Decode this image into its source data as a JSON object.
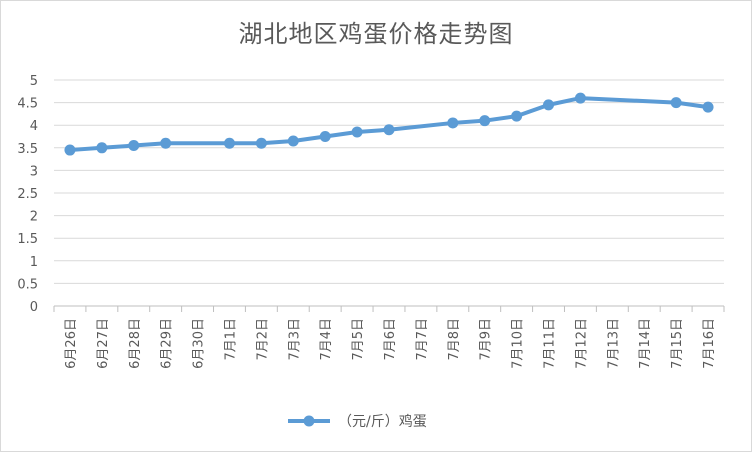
{
  "chart_data": {
    "type": "line",
    "title": "湖北地区鸡蛋价格走势图",
    "categories": [
      "6月26日",
      "6月27日",
      "6月28日",
      "6月29日",
      "6月30日",
      "7月1日",
      "7月2日",
      "7月3日",
      "7月4日",
      "7月5日",
      "7月6日",
      "7月7日",
      "7月8日",
      "7月9日",
      "7月10日",
      "7月11日",
      "7月12日",
      "7月13日",
      "7月14日",
      "7月15日",
      "7月16日"
    ],
    "y_ticks": [
      "0",
      "0.5",
      "1",
      "1.5",
      "2",
      "2.5",
      "3",
      "3.5",
      "4",
      "4.5",
      "5"
    ],
    "ylim": [
      0,
      5
    ],
    "grid": true,
    "legend_position": "bottom",
    "series": [
      {
        "name": "（元/斤）鸡蛋",
        "color": "#5b9bd5",
        "values": [
          3.45,
          3.5,
          3.55,
          3.6,
          null,
          3.6,
          3.6,
          3.65,
          3.75,
          3.85,
          3.9,
          null,
          4.05,
          4.1,
          4.2,
          4.45,
          4.6,
          null,
          null,
          4.5,
          4.4
        ]
      }
    ]
  }
}
